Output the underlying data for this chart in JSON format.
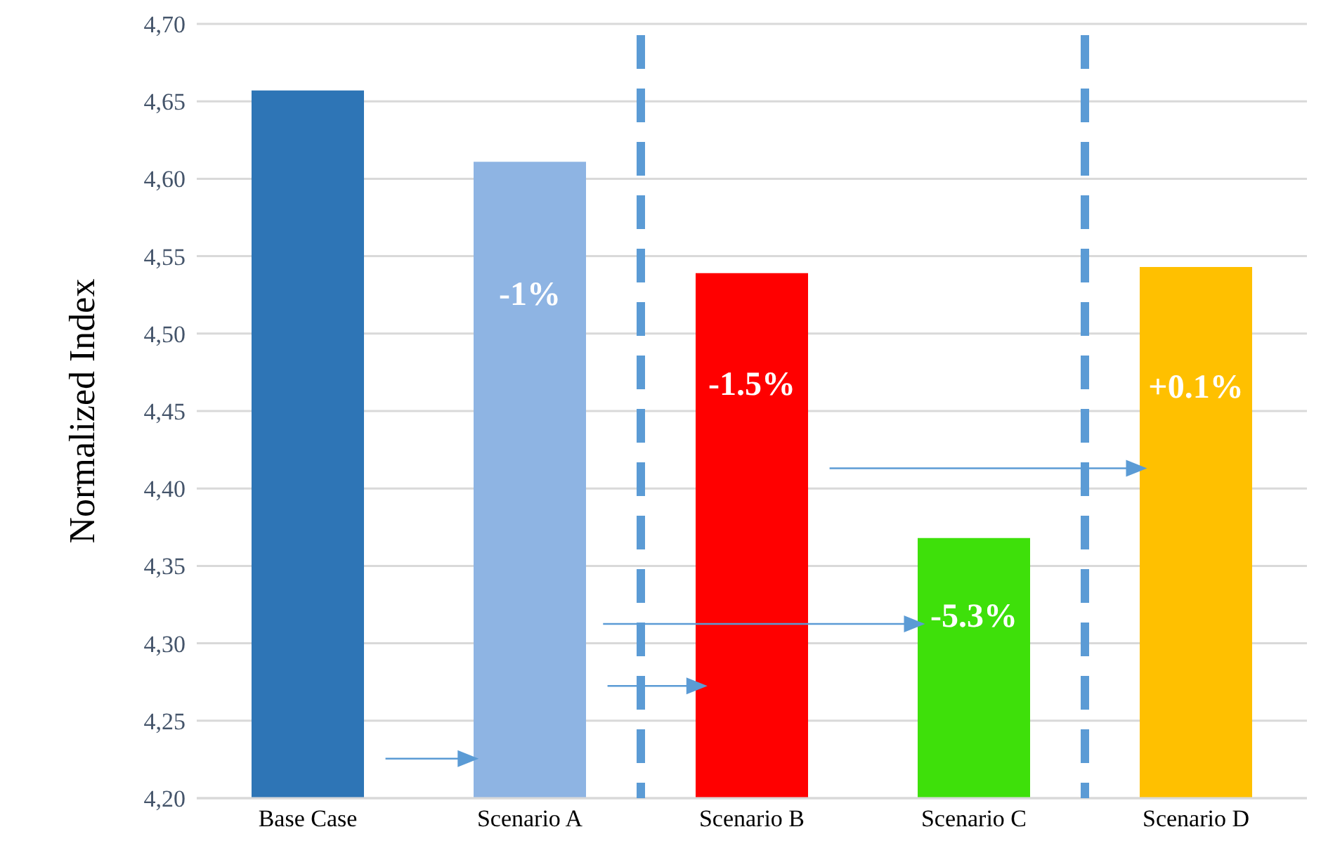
{
  "chart_data": {
    "type": "bar",
    "ylabel": "Normalized Index",
    "categories": [
      "Base Case",
      "Scenario A",
      "Scenario B",
      "Scenario C",
      "Scenario D"
    ],
    "values": [
      4.657,
      4.611,
      4.539,
      4.368,
      4.543
    ],
    "colors": [
      "#2e75b6",
      "#8eb4e3",
      "#ff0000",
      "#3ee00a",
      "#ffc000"
    ],
    "ylim": [
      4.2,
      4.7
    ],
    "yticks": [
      {
        "value": 4.2,
        "label": "4,20"
      },
      {
        "value": 4.25,
        "label": "4,25"
      },
      {
        "value": 4.3,
        "label": "4,30"
      },
      {
        "value": 4.35,
        "label": "4,35"
      },
      {
        "value": 4.4,
        "label": "4,40"
      },
      {
        "value": 4.45,
        "label": "4,45"
      },
      {
        "value": 4.5,
        "label": "4,50"
      },
      {
        "value": 4.55,
        "label": "4,55"
      },
      {
        "value": 4.6,
        "label": "4,60"
      },
      {
        "value": 4.65,
        "label": "4,65"
      },
      {
        "value": 4.7,
        "label": "4,70"
      }
    ],
    "grid": "y",
    "annotations": [
      "-1%",
      "-1.5%",
      "-5.3%",
      "+0.1%"
    ]
  }
}
